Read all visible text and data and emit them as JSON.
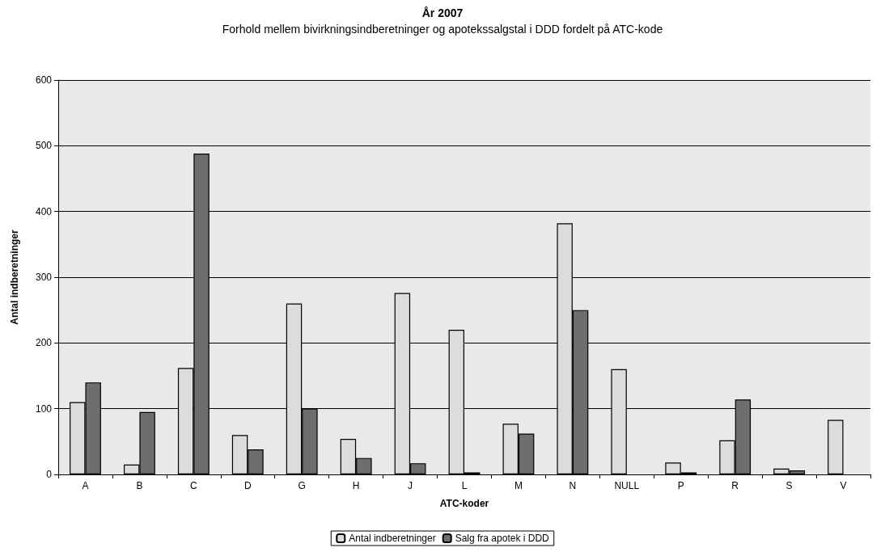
{
  "chart_data": {
    "type": "bar",
    "title": "År 2007",
    "subtitle": "Forhold mellem bivirkningsindberetninger og apotekssalgstal i DDD fordelt på ATC-kode",
    "xlabel": "ATC-koder",
    "ylabel": "Antal indberetninger",
    "categories": [
      "A",
      "B",
      "C",
      "D",
      "G",
      "H",
      "J",
      "L",
      "M",
      "N",
      "NULL",
      "P",
      "R",
      "S",
      "V"
    ],
    "series": [
      {
        "name": "Antal indberetninger",
        "color": "#dcdcdc",
        "values": [
          110,
          15,
          162,
          60,
          260,
          54,
          276,
          220,
          77,
          382,
          160,
          18,
          52,
          9,
          83
        ]
      },
      {
        "name": "Salg fra apotek i DDD",
        "color": "#6e6e6e",
        "values": [
          140,
          95,
          488,
          38,
          100,
          25,
          17,
          3,
          62,
          250,
          null,
          3,
          114,
          6,
          null
        ]
      }
    ],
    "ylim": [
      0,
      600
    ],
    "yticks": [
      0,
      100,
      200,
      300,
      400,
      500,
      600
    ],
    "grid": "y",
    "legend": "bottom"
  }
}
